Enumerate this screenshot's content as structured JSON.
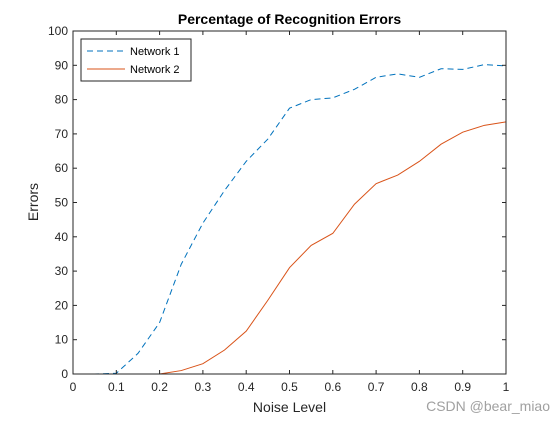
{
  "chart_data": {
    "type": "line",
    "title": "Percentage of Recognition Errors",
    "xlabel": "Noise Level",
    "ylabel": "Errors",
    "xlim": [
      0,
      1
    ],
    "ylim": [
      0,
      100
    ],
    "xticks": [
      "0",
      "0.1",
      "0.2",
      "0.3",
      "0.4",
      "0.5",
      "0.6",
      "0.7",
      "0.8",
      "0.9",
      "1"
    ],
    "yticks": [
      "0",
      "10",
      "20",
      "30",
      "40",
      "50",
      "60",
      "70",
      "80",
      "90",
      "100"
    ],
    "x": [
      0,
      0.05,
      0.1,
      0.15,
      0.2,
      0.25,
      0.3,
      0.35,
      0.4,
      0.45,
      0.5,
      0.55,
      0.6,
      0.65,
      0.7,
      0.75,
      0.8,
      0.85,
      0.9,
      0.95,
      1.0
    ],
    "series": [
      {
        "name": "Network 1",
        "color": "#0072BD",
        "style": "dashed",
        "values": [
          0,
          0,
          0.2,
          6,
          15,
          32,
          44,
          53.5,
          62,
          68.5,
          77.5,
          80,
          80.5,
          83,
          86.5,
          87.5,
          86.5,
          89,
          88.8,
          90.2,
          89.8
        ]
      },
      {
        "name": "Network 2",
        "color": "#D95319",
        "style": "solid",
        "values": [
          0,
          0,
          0,
          0,
          0,
          1,
          3,
          7,
          12.5,
          21.5,
          31,
          37.5,
          41,
          49.5,
          55.5,
          58,
          62,
          67,
          70.5,
          72.5,
          73.5
        ]
      }
    ],
    "grid": false,
    "legend_position": "top-left"
  },
  "watermark": "CSDN @bear_miao"
}
